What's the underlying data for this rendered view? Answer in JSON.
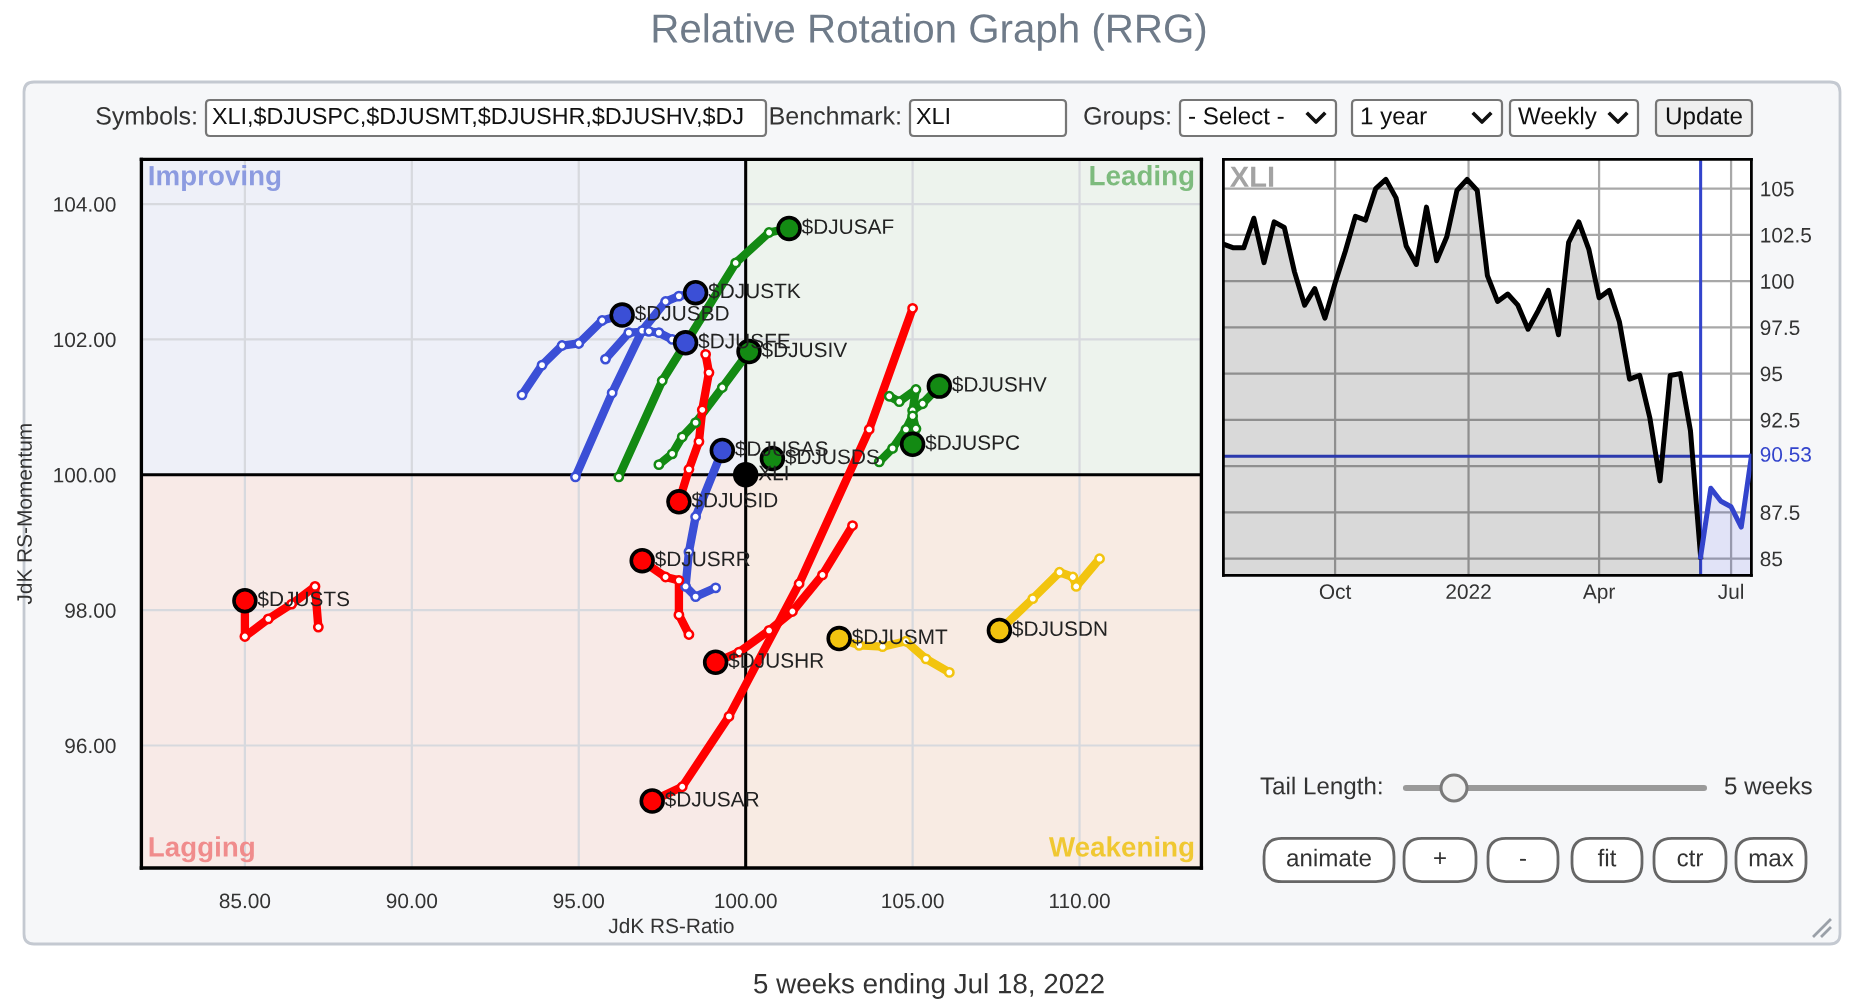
{
  "chart_data": [
    {
      "type": "other",
      "annotations": [
        "Symbols:",
        "XLI,$DJUSPC,$DJUSMT,$DJUSHR,$DJUSHV,$DJ",
        "Benchmark:",
        "XLI",
        "Groups:",
        "- Select -",
        "1 year",
        "Weekly",
        "Update"
      ]
    },
    {
      "type": "line",
      "title": "Relative Rotation Graph (RRG)",
      "xlabel": "JdK RS-Ratio",
      "ylabel": "JdK RS-Momentum",
      "xlim": [
        81.9,
        113.65
      ],
      "ylim": [
        94.19,
        104.66
      ],
      "xticks": [
        {
          "value": 85,
          "label": "85.00"
        },
        {
          "value": 90,
          "label": "90.00"
        },
        {
          "value": 95,
          "label": "95.00"
        },
        {
          "value": 100,
          "label": "100.00"
        },
        {
          "value": 105,
          "label": "105.00"
        },
        {
          "value": 110,
          "label": "110.00"
        }
      ],
      "yticks": [
        {
          "value": 96,
          "label": "96.00"
        },
        {
          "value": 98,
          "label": "98.00"
        },
        {
          "value": 100,
          "label": "100.00"
        },
        {
          "value": 102,
          "label": "102.00"
        },
        {
          "value": 104,
          "label": "104.00"
        }
      ],
      "grid": true,
      "marker": "circle",
      "bands": [
        {
          "axis": "x",
          "from": 81.9,
          "to": 100,
          "color": "#e3e6f3"
        },
        {
          "axis": "x",
          "from": 100,
          "to": 113.65,
          "color": "#e1ebe1"
        },
        {
          "axis": "y",
          "from": 94.19,
          "to": 100,
          "color": "#ffe6dc"
        }
      ],
      "ref_lines": [
        {
          "axis": "x",
          "value": 100,
          "color": "#000000"
        },
        {
          "axis": "y",
          "value": 100,
          "color": "#000000"
        }
      ],
      "annotations": [
        "Improving",
        "Leading",
        "Lagging",
        "Weakening",
        "5 weeks ending Jul 18, 2022"
      ],
      "series": [
        {
          "name": "$DJUSBD",
          "color": "#3b4fd6",
          "x": [
            93.3,
            93.9,
            94.5,
            95.0,
            95.7,
            96.3
          ],
          "values": [
            101.18,
            101.62,
            101.91,
            101.94,
            102.28,
            102.36
          ]
        },
        {
          "name": "$DJUSTK",
          "color": "#3b4fd6",
          "x": [
            94.9,
            96.0,
            96.9,
            97.6,
            98.0,
            98.5
          ],
          "values": [
            99.97,
            101.21,
            102.13,
            102.56,
            102.64,
            102.69
          ]
        },
        {
          "name": "$DJUSFE",
          "color": "#3b4fd6",
          "x": [
            95.8,
            96.5,
            97.1,
            97.4,
            97.8,
            98.2
          ],
          "values": [
            101.71,
            102.1,
            102.12,
            102.1,
            102.0,
            101.95
          ]
        },
        {
          "name": "$DJUSAS",
          "color": "#3b4fd6",
          "x": [
            99.1,
            98.5,
            98.2,
            98.3,
            98.5,
            99.3
          ],
          "values": [
            98.33,
            98.2,
            98.35,
            98.86,
            99.38,
            100.36
          ]
        },
        {
          "name": "$DJUSAF",
          "color": "#138a13",
          "x": [
            96.2,
            97.5,
            99.7,
            100.7,
            101.3
          ],
          "values": [
            99.97,
            101.39,
            103.13,
            103.58,
            103.64
          ]
        },
        {
          "name": "$DJUSIV",
          "color": "#138a13",
          "x": [
            97.4,
            97.8,
            98.1,
            98.5,
            99.3,
            100.1
          ],
          "values": [
            100.15,
            100.31,
            100.56,
            100.77,
            101.29,
            101.82
          ]
        },
        {
          "name": "$DJUSHV",
          "color": "#138a13",
          "x": [
            104.3,
            104.6,
            105.1,
            105.0,
            105.3,
            105.8
          ],
          "values": [
            101.16,
            101.08,
            101.26,
            100.95,
            101.05,
            101.31
          ]
        },
        {
          "name": "$DJUSPC",
          "color": "#138a13",
          "x": [
            104.0,
            104.4,
            104.8,
            105.0,
            105.1,
            105.0
          ],
          "values": [
            100.19,
            100.39,
            100.67,
            100.87,
            100.68,
            100.45
          ]
        },
        {
          "name": "$DJUSDS",
          "color": "#138a13",
          "x": [
            100.8
          ],
          "values": [
            100.24
          ]
        },
        {
          "name": "XLI",
          "color": "#000000",
          "x": [
            100
          ],
          "values": [
            100
          ]
        },
        {
          "name": "$DJUSID",
          "color": "#ff0000",
          "x": [
            98.8,
            98.9,
            98.7,
            98.6,
            98.3,
            98.0
          ],
          "values": [
            101.78,
            101.51,
            100.96,
            100.49,
            100.08,
            99.6
          ]
        },
        {
          "name": "$DJUSRR",
          "color": "#ff0000",
          "x": [
            98.3,
            98.0,
            98.0,
            97.6,
            96.9
          ],
          "values": [
            97.64,
            97.93,
            98.44,
            98.49,
            98.73
          ]
        },
        {
          "name": "$DJUSTS",
          "color": "#ff0000",
          "x": [
            87.2,
            87.1,
            86.4,
            85.7,
            85.0,
            85.0
          ],
          "values": [
            97.75,
            98.35,
            98.09,
            97.87,
            97.61,
            98.14
          ]
        },
        {
          "name": "$DJUSHR",
          "color": "#ff0000",
          "x": [
            103.2,
            102.3,
            101.4,
            100.7,
            99.8,
            99.1
          ],
          "values": [
            99.25,
            98.52,
            97.98,
            97.7,
            97.38,
            97.23
          ]
        },
        {
          "name": "$DJUSAR",
          "color": "#ff0000",
          "x": [
            105.0,
            103.7,
            101.6,
            99.5,
            98.1,
            97.2
          ],
          "values": [
            102.46,
            100.67,
            98.39,
            96.43,
            95.39,
            95.18
          ]
        },
        {
          "name": "$DJUSMT",
          "color": "#f2c40f",
          "x": [
            106.1,
            105.4,
            104.8,
            104.1,
            103.4,
            102.8
          ],
          "values": [
            97.08,
            97.28,
            97.54,
            97.46,
            97.48,
            97.58
          ]
        },
        {
          "name": "$DJUSDN",
          "color": "#f2c40f",
          "x": [
            110.6,
            109.9,
            109.8,
            109.4,
            108.6,
            107.6
          ],
          "values": [
            98.76,
            98.35,
            98.49,
            98.56,
            98.17,
            97.7
          ]
        }
      ]
    },
    {
      "type": "area",
      "title": "XLI",
      "xlim": [
        "2021-07-16",
        "2022-07-15"
      ],
      "ylim": [
        84.09,
        106.58
      ],
      "xticks": [
        {
          "value": "2021-10-01",
          "label": "Oct"
        },
        {
          "value": "2022-01-01",
          "label": "2022"
        },
        {
          "value": "2022-04-01",
          "label": "Apr"
        },
        {
          "value": "2022-07-01",
          "label": "Jul"
        }
      ],
      "yticks": [
        85,
        87.5,
        {
          "value": 90,
          "label": null
        },
        92.5,
        95,
        97.5,
        100,
        102.5,
        105
      ],
      "grid": true,
      "ref_lines": [
        {
          "axis": "x",
          "value": "2022-06-10",
          "color": "#3344cc"
        },
        {
          "axis": "y",
          "value": 90.53,
          "label": "90.53",
          "color": "#3344cc"
        }
      ],
      "series": [
        {
          "color": "#000000",
          "x": [
            "2021-07-16",
            "2021-07-23",
            "2021-07-30",
            "2021-08-06",
            "2021-08-13",
            "2021-08-20",
            "2021-08-27",
            "2021-09-03",
            "2021-09-10",
            "2021-09-17",
            "2021-09-24",
            "2021-10-01",
            "2021-10-08",
            "2021-10-15",
            "2021-10-22",
            "2021-10-29",
            "2021-11-05",
            "2021-11-12",
            "2021-11-19",
            "2021-11-26",
            "2021-12-03",
            "2021-12-10",
            "2021-12-17",
            "2021-12-24",
            "2021-12-31",
            "2022-01-07",
            "2022-01-14",
            "2022-01-21",
            "2022-01-28",
            "2022-02-04",
            "2022-02-11",
            "2022-02-18",
            "2022-02-25",
            "2022-03-04",
            "2022-03-11",
            "2022-03-18",
            "2022-03-25",
            "2022-04-01",
            "2022-04-08",
            "2022-04-15",
            "2022-04-22",
            "2022-04-29",
            "2022-05-06",
            "2022-05-13",
            "2022-05-20",
            "2022-05-27",
            "2022-06-03",
            "2022-06-10"
          ],
          "values": [
            102.0,
            101.8,
            101.8,
            103.4,
            101.0,
            103.2,
            102.9,
            100.5,
            98.7,
            99.6,
            98.0,
            99.9,
            101.6,
            103.5,
            103.3,
            105.0,
            105.5,
            104.5,
            101.9,
            100.9,
            104.0,
            101.1,
            102.4,
            104.9,
            105.5,
            104.9,
            100.3,
            98.9,
            99.3,
            98.7,
            97.4,
            98.4,
            99.5,
            97.1,
            102.1,
            103.2,
            101.7,
            99.1,
            99.5,
            97.8,
            94.7,
            94.9,
            92.6,
            89.2,
            94.9,
            95.0,
            91.9,
            85.1
          ]
        },
        {
          "color": "#3344cc",
          "x": [
            "2022-06-10",
            "2022-06-17",
            "2022-06-24",
            "2022-07-01",
            "2022-07-08",
            "2022-07-15"
          ],
          "values": [
            85.1,
            88.8,
            88.1,
            87.8,
            86.7,
            90.53
          ]
        }
      ]
    },
    {
      "type": "other",
      "annotations": [
        "Tail Length:",
        "5 weeks",
        "animate",
        "+",
        "-",
        "fit",
        "ctr",
        "max"
      ]
    }
  ]
}
